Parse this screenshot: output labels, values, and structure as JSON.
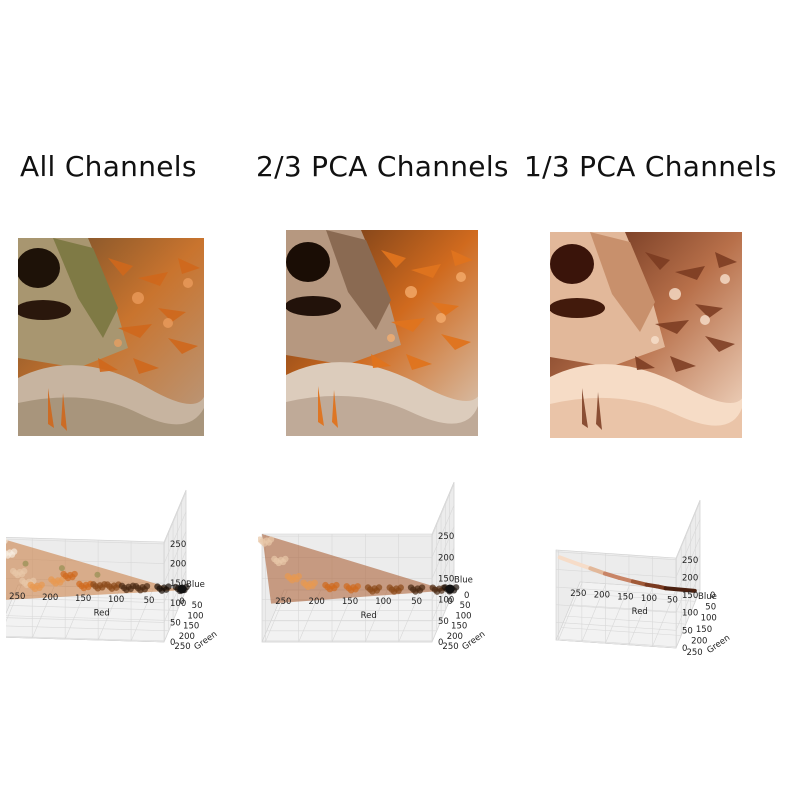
{
  "columns": [
    {
      "title": "All Channels",
      "image_tint": "natural"
    },
    {
      "title": "2/3 PCA Channels",
      "image_tint": "orange"
    },
    {
      "title": "1/3 PCA Channels",
      "image_tint": "sepia"
    }
  ],
  "colors": {
    "orange": "#c8611e",
    "cream": "#f3e4d2",
    "dark": "#1a1008",
    "sepia_dark": "#5a2a14",
    "sepia_light": "#f6dcc8",
    "moss": "#8a8a4a"
  },
  "chart_data": [
    {
      "type": "scatter",
      "title": "",
      "projection": "3d",
      "xlabel": "Red",
      "ylabel": "Green",
      "zlabel": "Blue",
      "xticks": [
        "250",
        "200",
        "150",
        "100",
        "50",
        "0"
      ],
      "yticks": [
        "250",
        "200",
        "150",
        "100",
        "50"
      ],
      "zticks": [
        "250",
        "200",
        "150",
        "100",
        "50",
        "0"
      ],
      "xlim": [
        0,
        255
      ],
      "ylim": [
        0,
        255
      ],
      "zlim": [
        0,
        255
      ],
      "distribution": "wide diagonal cloud from light cream (high RGB) to black (0,0,0)",
      "points": [
        {
          "x": 250,
          "y": 245,
          "z": 235
        },
        {
          "x": 240,
          "y": 210,
          "z": 190
        },
        {
          "x": 230,
          "y": 170,
          "z": 120
        },
        {
          "x": 220,
          "y": 140,
          "z": 80
        },
        {
          "x": 210,
          "y": 120,
          "z": 60
        },
        {
          "x": 180,
          "y": 110,
          "z": 70
        },
        {
          "x": 160,
          "y": 120,
          "z": 90
        },
        {
          "x": 140,
          "y": 90,
          "z": 50
        },
        {
          "x": 120,
          "y": 80,
          "z": 45
        },
        {
          "x": 100,
          "y": 70,
          "z": 40
        },
        {
          "x": 80,
          "y": 55,
          "z": 30
        },
        {
          "x": 60,
          "y": 45,
          "z": 25
        },
        {
          "x": 30,
          "y": 25,
          "z": 15
        },
        {
          "x": 5,
          "y": 5,
          "z": 5
        }
      ]
    },
    {
      "type": "scatter",
      "title": "",
      "projection": "3d",
      "xlabel": "Red",
      "ylabel": "Green",
      "zlabel": "Blue",
      "xticks": [
        "250",
        "200",
        "150",
        "100",
        "50",
        "0"
      ],
      "yticks": [
        "250",
        "200",
        "150",
        "100",
        "50",
        "0"
      ],
      "zticks": [
        "250",
        "200",
        "150",
        "100",
        "50",
        "0"
      ],
      "xlim": [
        0,
        255
      ],
      "ylim": [
        0,
        255
      ],
      "zlim": [
        0,
        255
      ],
      "distribution": "planar wedge from light cream to black",
      "points": [
        {
          "x": 250,
          "y": 240,
          "z": 230
        },
        {
          "x": 235,
          "y": 190,
          "z": 160
        },
        {
          "x": 220,
          "y": 150,
          "z": 100
        },
        {
          "x": 200,
          "y": 120,
          "z": 70
        },
        {
          "x": 170,
          "y": 100,
          "z": 55
        },
        {
          "x": 140,
          "y": 85,
          "z": 45
        },
        {
          "x": 110,
          "y": 70,
          "z": 35
        },
        {
          "x": 80,
          "y": 50,
          "z": 25
        },
        {
          "x": 50,
          "y": 35,
          "z": 18
        },
        {
          "x": 20,
          "y": 15,
          "z": 8
        },
        {
          "x": 3,
          "y": 3,
          "z": 3
        }
      ]
    },
    {
      "type": "scatter",
      "title": "",
      "projection": "3d",
      "xlabel": "Red",
      "ylabel": "Green",
      "zlabel": "Blue",
      "xticks": [
        "250",
        "200",
        "150",
        "100",
        "50"
      ],
      "yticks": [
        "250",
        "200",
        "150",
        "100",
        "50",
        "0"
      ],
      "zticks": [
        "250",
        "200",
        "150",
        "100",
        "50",
        "0"
      ],
      "xlim": [
        0,
        255
      ],
      "ylim": [
        0,
        255
      ],
      "zlim": [
        0,
        255
      ],
      "distribution": "single line from light pink (high RGB) to dark brown",
      "points": [
        {
          "x": 250,
          "y": 240,
          "z": 225
        },
        {
          "x": 225,
          "y": 200,
          "z": 185
        },
        {
          "x": 200,
          "y": 165,
          "z": 150
        },
        {
          "x": 175,
          "y": 135,
          "z": 118
        },
        {
          "x": 150,
          "y": 110,
          "z": 92
        },
        {
          "x": 125,
          "y": 88,
          "z": 70
        },
        {
          "x": 100,
          "y": 68,
          "z": 50
        },
        {
          "x": 80,
          "y": 50,
          "z": 35
        },
        {
          "x": 65,
          "y": 40,
          "z": 25
        }
      ]
    }
  ]
}
